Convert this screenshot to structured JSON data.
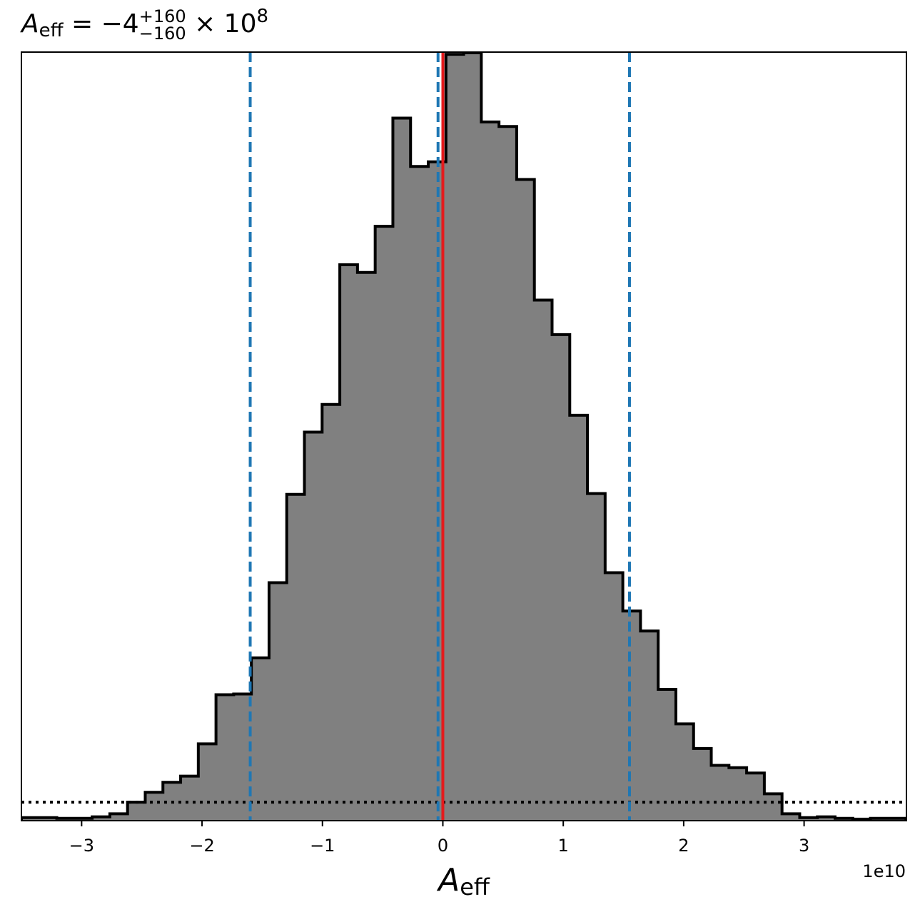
{
  "chart_data": {
    "type": "histogram",
    "title": {
      "symbol": "A",
      "subscript": "eff",
      "equals": " = ",
      "value": "−4",
      "upper": "+160",
      "lower": "−160",
      "times": " × 10",
      "exponent": "8"
    },
    "xlabel": {
      "symbol": "A",
      "subscript": "eff"
    },
    "x_offset_label": "1e10",
    "xlim": [
      -3.5,
      3.85
    ],
    "ylim": [
      0,
      1.0
    ],
    "x_ticks": [
      -3,
      -2,
      -1,
      0,
      1,
      2,
      3
    ],
    "x_tick_labels": [
      "−3",
      "−2",
      "−1",
      "0",
      "1",
      "2",
      "3"
    ],
    "bins": {
      "start": -3.5,
      "width": 0.1469,
      "heights": [
        0.004,
        0.004,
        0.003,
        0.003,
        0.005,
        0.009,
        0.024,
        0.037,
        0.05,
        0.058,
        0.1,
        0.164,
        0.165,
        0.212,
        0.31,
        0.425,
        0.506,
        0.542,
        0.724,
        0.714,
        0.774,
        0.915,
        0.852,
        0.858,
        0.998,
        1.0,
        0.91,
        0.904,
        0.835,
        0.678,
        0.633,
        0.528,
        0.426,
        0.323,
        0.273,
        0.247,
        0.171,
        0.126,
        0.094,
        0.072,
        0.069,
        0.062,
        0.035,
        0.009,
        0.004,
        0.005,
        0.003,
        0.002,
        0.003,
        0.003
      ]
    },
    "prior_level": 0.024,
    "median": 0.0,
    "quantile_lines": [
      -1.6,
      -0.04,
      1.55
    ],
    "grid": false,
    "colors": {
      "fill": "#808080",
      "edge": "#000000",
      "median": "#e41a1c",
      "quantiles": "#1f77b4",
      "prior": "#000000"
    }
  }
}
